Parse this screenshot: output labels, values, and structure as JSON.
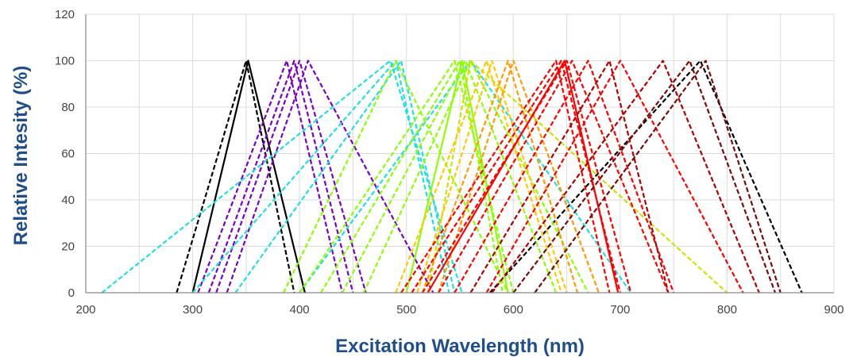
{
  "chart_data": {
    "type": "line",
    "title": "",
    "xlabel": "Excitation Wavelength (nm)",
    "ylabel": "Relative Intesity (%)",
    "xlim": [
      200,
      900
    ],
    "ylim": [
      0,
      120
    ],
    "x_ticks": [
      200,
      300,
      400,
      500,
      600,
      700,
      800,
      900
    ],
    "y_ticks": [
      0,
      20,
      40,
      60,
      80,
      100,
      120
    ],
    "grid": true,
    "legend": "none",
    "series": [
      {
        "color": "#000000",
        "dash": "dashed",
        "points": [
          [
            285,
            0
          ],
          [
            350,
            100
          ],
          [
            395,
            0
          ]
        ]
      },
      {
        "color": "#000000",
        "dash": "solid",
        "points": [
          [
            300,
            0
          ],
          [
            352,
            100
          ],
          [
            405,
            0
          ]
        ]
      },
      {
        "color": "#000000",
        "dash": "dashed",
        "points": [
          [
            578,
            0
          ],
          [
            775,
            100
          ],
          [
            870,
            0
          ]
        ]
      },
      {
        "color": "#7a00c8",
        "dash": "dashed",
        "points": [
          [
            305,
            0
          ],
          [
            388,
            100
          ],
          [
            440,
            0
          ]
        ]
      },
      {
        "color": "#7a00c8",
        "dash": "dashed",
        "points": [
          [
            315,
            0
          ],
          [
            395,
            100
          ],
          [
            450,
            0
          ]
        ]
      },
      {
        "color": "#7a00c8",
        "dash": "dashed",
        "points": [
          [
            322,
            0
          ],
          [
            400,
            100
          ],
          [
            462,
            0
          ]
        ]
      },
      {
        "color": "#7a00c8",
        "dash": "dashed",
        "points": [
          [
            332,
            0
          ],
          [
            408,
            100
          ],
          [
            525,
            0
          ]
        ]
      },
      {
        "color": "#1ee0e0",
        "dash": "dashed",
        "points": [
          [
            215,
            0
          ],
          [
            485,
            100
          ],
          [
            552,
            0
          ]
        ]
      },
      {
        "color": "#1ee0e0",
        "dash": "dashed",
        "points": [
          [
            300,
            0
          ],
          [
            490,
            100
          ],
          [
            540,
            0
          ]
        ]
      },
      {
        "color": "#1ee0e0",
        "dash": "dashed",
        "points": [
          [
            340,
            0
          ],
          [
            495,
            100
          ],
          [
            545,
            0
          ]
        ]
      },
      {
        "color": "#1ee0e0",
        "dash": "dashed",
        "points": [
          [
            400,
            0
          ],
          [
            560,
            100
          ],
          [
            710,
            0
          ]
        ]
      },
      {
        "color": "#8cff00",
        "dash": "dashed",
        "points": [
          [
            385,
            0
          ],
          [
            490,
            100
          ],
          [
            595,
            0
          ]
        ]
      },
      {
        "color": "#8cff00",
        "dash": "dashed",
        "points": [
          [
            400,
            0
          ],
          [
            545,
            100
          ],
          [
            600,
            0
          ]
        ]
      },
      {
        "color": "#8cff00",
        "dash": "dashed",
        "points": [
          [
            420,
            0
          ],
          [
            550,
            100
          ],
          [
            590,
            0
          ]
        ]
      },
      {
        "color": "#8cff00",
        "dash": "dashed",
        "points": [
          [
            440,
            0
          ],
          [
            555,
            100
          ],
          [
            640,
            0
          ]
        ]
      },
      {
        "color": "#8cff00",
        "dash": "dashed",
        "points": [
          [
            460,
            0
          ],
          [
            560,
            100
          ],
          [
            670,
            0
          ]
        ]
      },
      {
        "color": "#8cff00",
        "dash": "solid",
        "points": [
          [
            500,
            0
          ],
          [
            552,
            100
          ],
          [
            595,
            0
          ]
        ]
      },
      {
        "color": "#c8e600",
        "dash": "dashed",
        "points": [
          [
            520,
            0
          ],
          [
            560,
            100
          ],
          [
            800,
            0
          ]
        ]
      },
      {
        "color": "#ffc800",
        "dash": "dashed",
        "points": [
          [
            490,
            0
          ],
          [
            575,
            100
          ],
          [
            645,
            0
          ]
        ]
      },
      {
        "color": "#ffc800",
        "dash": "dashed",
        "points": [
          [
            510,
            0
          ],
          [
            580,
            100
          ],
          [
            650,
            0
          ]
        ]
      },
      {
        "color": "#ff9900",
        "dash": "dashed",
        "points": [
          [
            515,
            0
          ],
          [
            595,
            100
          ],
          [
            660,
            0
          ]
        ]
      },
      {
        "color": "#ff9900",
        "dash": "dashed",
        "points": [
          [
            530,
            0
          ],
          [
            600,
            100
          ],
          [
            680,
            0
          ]
        ]
      },
      {
        "color": "#ff0000",
        "dash": "dashed",
        "points": [
          [
            495,
            0
          ],
          [
            640,
            100
          ],
          [
            690,
            0
          ]
        ]
      },
      {
        "color": "#ff0000",
        "dash": "dashed",
        "points": [
          [
            505,
            0
          ],
          [
            645,
            100
          ],
          [
            700,
            0
          ]
        ]
      },
      {
        "color": "#ff0000",
        "dash": "dashed",
        "points": [
          [
            515,
            0
          ],
          [
            650,
            100
          ],
          [
            710,
            0
          ]
        ]
      },
      {
        "color": "#ff0000",
        "dash": "solid",
        "points": [
          [
            520,
            0
          ],
          [
            648,
            100
          ],
          [
            698,
            0
          ]
        ]
      },
      {
        "color": "#ff0000",
        "dash": "dashed",
        "points": [
          [
            530,
            0
          ],
          [
            655,
            100
          ],
          [
            745,
            0
          ]
        ]
      },
      {
        "color": "#ff0000",
        "dash": "dashed",
        "points": [
          [
            545,
            0
          ],
          [
            670,
            100
          ],
          [
            750,
            0
          ]
        ]
      },
      {
        "color": "#ff0000",
        "dash": "dashed",
        "points": [
          [
            575,
            0
          ],
          [
            700,
            100
          ],
          [
            815,
            0
          ]
        ]
      },
      {
        "color": "#b00000",
        "dash": "dashed",
        "points": [
          [
            560,
            0
          ],
          [
            690,
            100
          ],
          [
            745,
            0
          ]
        ]
      },
      {
        "color": "#b00000",
        "dash": "dashed",
        "points": [
          [
            580,
            0
          ],
          [
            740,
            100
          ],
          [
            830,
            0
          ]
        ]
      },
      {
        "color": "#7a0a0a",
        "dash": "dashed",
        "points": [
          [
            600,
            0
          ],
          [
            765,
            100
          ],
          [
            845,
            0
          ]
        ]
      },
      {
        "color": "#7a0a0a",
        "dash": "dashed",
        "points": [
          [
            620,
            0
          ],
          [
            780,
            100
          ],
          [
            850,
            0
          ]
        ]
      }
    ]
  }
}
